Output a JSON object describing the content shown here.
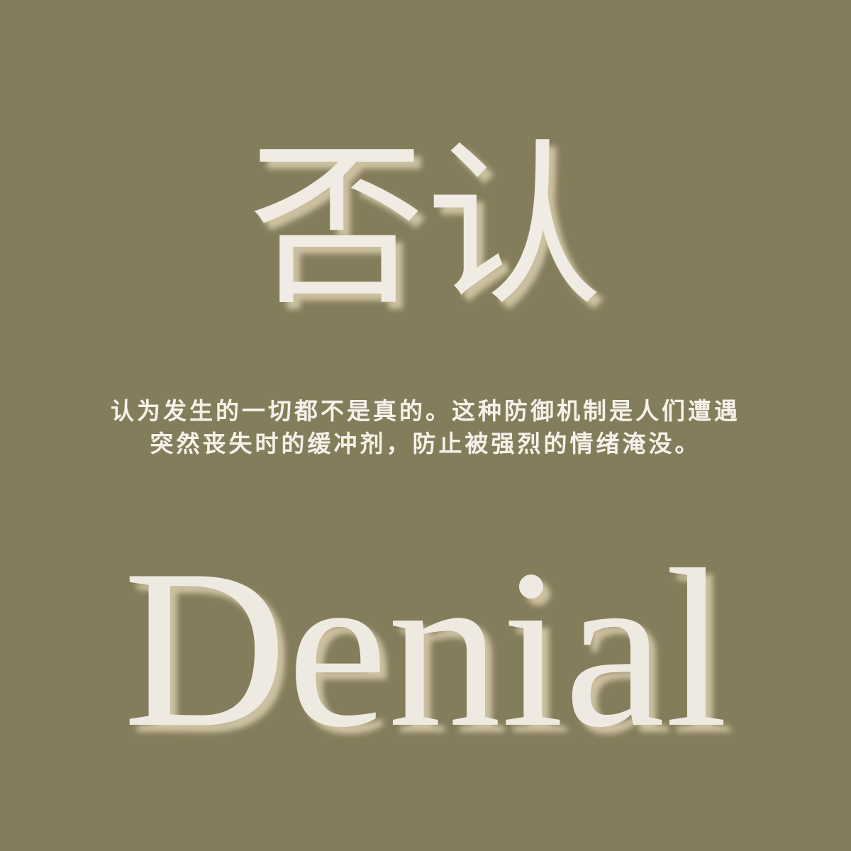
{
  "colors": {
    "background": "#847d5b",
    "text": "#f0ebe3",
    "shadow": "#e4d7b8"
  },
  "title_zh": "否认",
  "description": "认为发生的一切都不是真的。这种防御机制是人们遭遇突然丧失时的缓冲剂，防止被强烈的情绪淹没。",
  "title_en": "Denial"
}
